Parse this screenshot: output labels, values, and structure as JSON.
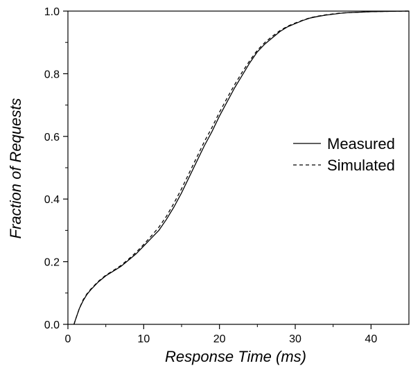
{
  "chart_data": {
    "type": "line",
    "xlabel": "Response Time (ms)",
    "ylabel": "Fraction of Requests",
    "xlim": [
      0,
      45
    ],
    "ylim": [
      0,
      1.0
    ],
    "xticks": [
      0,
      10,
      20,
      30,
      40
    ],
    "xtick_labels": [
      "0",
      "10",
      "20",
      "30",
      "40"
    ],
    "yticks": [
      0.0,
      0.2,
      0.4,
      0.6,
      0.8,
      1.0
    ],
    "ytick_labels": [
      "0.0",
      "0.2",
      "0.4",
      "0.6",
      "0.8",
      "1.0"
    ],
    "grid": false,
    "legend_position": "center-right",
    "series": [
      {
        "name": "Measured",
        "style": "solid",
        "color": "#000000",
        "x": [
          0.8,
          1.0,
          1.5,
          2.0,
          2.5,
          3.0,
          4.0,
          5.0,
          6.0,
          7.0,
          8.0,
          9.0,
          10.0,
          11.0,
          12.0,
          13.0,
          14.0,
          15.0,
          16.0,
          17.0,
          18.0,
          19.0,
          20.0,
          21.0,
          22.0,
          23.0,
          24.0,
          25.0,
          26.0,
          27.0,
          28.0,
          29.0,
          30.0,
          31.0,
          32.0,
          33.0,
          34.0,
          35.0,
          36.0,
          37.0,
          38.0,
          39.0,
          40.0,
          42.0,
          45.0
        ],
        "y": [
          0.0,
          0.015,
          0.05,
          0.075,
          0.095,
          0.11,
          0.135,
          0.155,
          0.17,
          0.185,
          0.205,
          0.225,
          0.25,
          0.275,
          0.3,
          0.335,
          0.375,
          0.42,
          0.47,
          0.52,
          0.57,
          0.615,
          0.665,
          0.71,
          0.755,
          0.795,
          0.835,
          0.87,
          0.895,
          0.915,
          0.935,
          0.95,
          0.96,
          0.97,
          0.978,
          0.983,
          0.987,
          0.99,
          0.993,
          0.995,
          0.996,
          0.997,
          0.998,
          0.999,
          1.0
        ]
      },
      {
        "name": "Simulated",
        "style": "dashed",
        "color": "#000000",
        "x": [
          0.8,
          1.0,
          1.5,
          2.0,
          2.5,
          3.0,
          4.0,
          5.0,
          6.0,
          7.0,
          8.0,
          9.0,
          10.0,
          11.0,
          12.0,
          13.0,
          14.0,
          15.0,
          16.0,
          17.0,
          18.0,
          19.0,
          20.0,
          21.0,
          22.0,
          23.0,
          24.0,
          25.0,
          26.0,
          27.0,
          28.0,
          29.0,
          30.0,
          31.0,
          32.0,
          33.0,
          34.0,
          35.0,
          36.0,
          37.0,
          38.0,
          39.0,
          40.0,
          42.0,
          45.0
        ],
        "y": [
          0.0,
          0.015,
          0.05,
          0.078,
          0.097,
          0.112,
          0.137,
          0.157,
          0.172,
          0.188,
          0.208,
          0.23,
          0.255,
          0.282,
          0.31,
          0.345,
          0.387,
          0.433,
          0.483,
          0.533,
          0.583,
          0.628,
          0.677,
          0.722,
          0.765,
          0.805,
          0.842,
          0.875,
          0.9,
          0.92,
          0.938,
          0.952,
          0.962,
          0.971,
          0.979,
          0.984,
          0.988,
          0.991,
          0.994,
          0.995,
          0.996,
          0.997,
          0.998,
          0.999,
          1.0
        ]
      }
    ]
  }
}
